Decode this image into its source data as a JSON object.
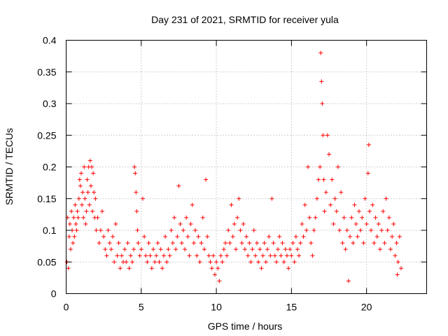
{
  "chart_data": {
    "type": "scatter",
    "title": "Day 231 of 2021, SRMTID for receiver yula",
    "xlabel": "GPS time / hours",
    "ylabel": "SRMTID / TECUs",
    "xlim": [
      0,
      24
    ],
    "ylim": [
      0,
      0.4
    ],
    "x_ticks": [
      "0",
      "5",
      "10",
      "15",
      "20"
    ],
    "y_ticks": [
      "0",
      "0.05",
      "0.1",
      "0.15",
      "0.2",
      "0.25",
      "0.3",
      "0.35",
      "0.4"
    ],
    "grid": true,
    "marker": "+",
    "series": [
      {
        "name": "SRMTID",
        "color": "#ff0000",
        "points": [
          [
            0.05,
            0.05
          ],
          [
            0.1,
            0.12
          ],
          [
            0.15,
            0.04
          ],
          [
            0.2,
            0.09
          ],
          [
            0.25,
            0.11
          ],
          [
            0.3,
            0.07
          ],
          [
            0.35,
            0.13
          ],
          [
            0.4,
            0.1
          ],
          [
            0.45,
            0.08
          ],
          [
            0.5,
            0.12
          ],
          [
            0.55,
            0.09
          ],
          [
            0.6,
            0.14
          ],
          [
            0.65,
            0.11
          ],
          [
            0.7,
            0.1
          ],
          [
            0.75,
            0.13
          ],
          [
            0.8,
            0.12
          ],
          [
            0.85,
            0.15
          ],
          [
            0.9,
            0.18
          ],
          [
            0.95,
            0.17
          ],
          [
            1.0,
            0.19
          ],
          [
            1.05,
            0.14
          ],
          [
            1.1,
            0.16
          ],
          [
            1.15,
            0.12
          ],
          [
            1.2,
            0.2
          ],
          [
            1.25,
            0.15
          ],
          [
            1.3,
            0.11
          ],
          [
            1.35,
            0.13
          ],
          [
            1.4,
            0.18
          ],
          [
            1.45,
            0.16
          ],
          [
            1.5,
            0.2
          ],
          [
            1.55,
            0.14
          ],
          [
            1.6,
            0.21
          ],
          [
            1.65,
            0.17
          ],
          [
            1.7,
            0.2
          ],
          [
            1.75,
            0.13
          ],
          [
            1.8,
            0.19
          ],
          [
            1.85,
            0.16
          ],
          [
            1.9,
            0.12
          ],
          [
            1.95,
            0.15
          ],
          [
            2.0,
            0.1
          ],
          [
            2.1,
            0.12
          ],
          [
            2.2,
            0.08
          ],
          [
            2.3,
            0.1
          ],
          [
            2.4,
            0.13
          ],
          [
            2.5,
            0.09
          ],
          [
            2.6,
            0.07
          ],
          [
            2.7,
            0.06
          ],
          [
            2.8,
            0.1
          ],
          [
            2.9,
            0.08
          ],
          [
            3.0,
            0.07
          ],
          [
            3.1,
            0.09
          ],
          [
            3.2,
            0.05
          ],
          [
            3.3,
            0.11
          ],
          [
            3.4,
            0.06
          ],
          [
            3.5,
            0.08
          ],
          [
            3.6,
            0.04
          ],
          [
            3.7,
            0.06
          ],
          [
            3.8,
            0.05
          ],
          [
            3.9,
            0.07
          ],
          [
            4.0,
            0.05
          ],
          [
            4.1,
            0.08
          ],
          [
            4.2,
            0.04
          ],
          [
            4.3,
            0.06
          ],
          [
            4.4,
            0.05
          ],
          [
            4.5,
            0.07
          ],
          [
            4.55,
            0.2
          ],
          [
            4.6,
            0.19
          ],
          [
            4.65,
            0.16
          ],
          [
            4.7,
            0.13
          ],
          [
            4.75,
            0.1
          ],
          [
            4.8,
            0.08
          ],
          [
            4.9,
            0.06
          ],
          [
            5.0,
            0.07
          ],
          [
            5.1,
            0.15
          ],
          [
            5.2,
            0.09
          ],
          [
            5.3,
            0.06
          ],
          [
            5.4,
            0.05
          ],
          [
            5.5,
            0.08
          ],
          [
            5.6,
            0.06
          ],
          [
            5.7,
            0.04
          ],
          [
            5.8,
            0.07
          ],
          [
            5.9,
            0.05
          ],
          [
            6.0,
            0.06
          ],
          [
            6.1,
            0.08
          ],
          [
            6.2,
            0.05
          ],
          [
            6.3,
            0.07
          ],
          [
            6.4,
            0.04
          ],
          [
            6.5,
            0.06
          ],
          [
            6.6,
            0.09
          ],
          [
            6.7,
            0.05
          ],
          [
            6.8,
            0.07
          ],
          [
            6.9,
            0.06
          ],
          [
            7.0,
            0.1
          ],
          [
            7.1,
            0.08
          ],
          [
            7.2,
            0.12
          ],
          [
            7.3,
            0.07
          ],
          [
            7.4,
            0.09
          ],
          [
            7.5,
            0.17
          ],
          [
            7.6,
            0.11
          ],
          [
            7.7,
            0.08
          ],
          [
            7.8,
            0.1
          ],
          [
            7.9,
            0.07
          ],
          [
            8.0,
            0.12
          ],
          [
            8.1,
            0.09
          ],
          [
            8.2,
            0.06
          ],
          [
            8.3,
            0.11
          ],
          [
            8.4,
            0.14
          ],
          [
            8.5,
            0.08
          ],
          [
            8.6,
            0.1
          ],
          [
            8.7,
            0.06
          ],
          [
            8.8,
            0.09
          ],
          [
            8.9,
            0.05
          ],
          [
            9.0,
            0.08
          ],
          [
            9.1,
            0.12
          ],
          [
            9.2,
            0.07
          ],
          [
            9.3,
            0.18
          ],
          [
            9.4,
            0.09
          ],
          [
            9.5,
            0.06
          ],
          [
            9.6,
            0.05
          ],
          [
            9.7,
            0.04
          ],
          [
            9.8,
            0.06
          ],
          [
            9.9,
            0.03
          ],
          [
            10.0,
            0.05
          ],
          [
            10.1,
            0.04
          ],
          [
            10.2,
            0.02
          ],
          [
            10.3,
            0.06
          ],
          [
            10.4,
            0.05
          ],
          [
            10.5,
            0.07
          ],
          [
            10.6,
            0.08
          ],
          [
            10.7,
            0.06
          ],
          [
            10.8,
            0.1
          ],
          [
            10.9,
            0.08
          ],
          [
            11.0,
            0.14
          ],
          [
            11.1,
            0.09
          ],
          [
            11.2,
            0.11
          ],
          [
            11.3,
            0.07
          ],
          [
            11.4,
            0.12
          ],
          [
            11.5,
            0.15
          ],
          [
            11.6,
            0.1
          ],
          [
            11.7,
            0.08
          ],
          [
            11.8,
            0.11
          ],
          [
            11.9,
            0.07
          ],
          [
            12.0,
            0.09
          ],
          [
            12.1,
            0.06
          ],
          [
            12.2,
            0.08
          ],
          [
            12.3,
            0.05
          ],
          [
            12.4,
            0.07
          ],
          [
            12.5,
            0.1
          ],
          [
            12.6,
            0.06
          ],
          [
            12.7,
            0.08
          ],
          [
            12.8,
            0.05
          ],
          [
            12.9,
            0.07
          ],
          [
            13.0,
            0.04
          ],
          [
            13.1,
            0.06
          ],
          [
            13.2,
            0.08
          ],
          [
            13.3,
            0.05
          ],
          [
            13.4,
            0.07
          ],
          [
            13.5,
            0.09
          ],
          [
            13.6,
            0.06
          ],
          [
            13.7,
            0.15
          ],
          [
            13.8,
            0.08
          ],
          [
            13.9,
            0.06
          ],
          [
            14.0,
            0.05
          ],
          [
            14.1,
            0.07
          ],
          [
            14.2,
            0.09
          ],
          [
            14.3,
            0.06
          ],
          [
            14.4,
            0.08
          ],
          [
            14.5,
            0.05
          ],
          [
            14.6,
            0.07
          ],
          [
            14.7,
            0.06
          ],
          [
            14.8,
            0.04
          ],
          [
            14.9,
            0.07
          ],
          [
            15.0,
            0.06
          ],
          [
            15.1,
            0.08
          ],
          [
            15.2,
            0.05
          ],
          [
            15.3,
            0.09
          ],
          [
            15.4,
            0.07
          ],
          [
            15.5,
            0.06
          ],
          [
            15.6,
            0.08
          ],
          [
            15.7,
            0.11
          ],
          [
            15.8,
            0.09
          ],
          [
            15.9,
            0.14
          ],
          [
            16.0,
            0.1
          ],
          [
            16.1,
            0.2
          ],
          [
            16.2,
            0.12
          ],
          [
            16.3,
            0.08
          ],
          [
            16.4,
            0.06
          ],
          [
            16.5,
            0.1
          ],
          [
            16.6,
            0.12
          ],
          [
            16.7,
            0.15
          ],
          [
            16.8,
            0.18
          ],
          [
            16.9,
            0.2
          ],
          [
            16.95,
            0.38
          ],
          [
            17.0,
            0.335
          ],
          [
            17.05,
            0.3
          ],
          [
            17.1,
            0.25
          ],
          [
            17.15,
            0.18
          ],
          [
            17.2,
            0.13
          ],
          [
            17.3,
            0.16
          ],
          [
            17.4,
            0.25
          ],
          [
            17.5,
            0.22
          ],
          [
            17.6,
            0.14
          ],
          [
            17.7,
            0.18
          ],
          [
            17.8,
            0.11
          ],
          [
            17.9,
            0.15
          ],
          [
            18.0,
            0.13
          ],
          [
            18.1,
            0.2
          ],
          [
            18.2,
            0.1
          ],
          [
            18.3,
            0.16
          ],
          [
            18.4,
            0.08
          ],
          [
            18.5,
            0.12
          ],
          [
            18.6,
            0.07
          ],
          [
            18.7,
            0.1
          ],
          [
            18.8,
            0.02
          ],
          [
            18.9,
            0.09
          ],
          [
            19.0,
            0.12
          ],
          [
            19.1,
            0.08
          ],
          [
            19.2,
            0.14
          ],
          [
            19.3,
            0.11
          ],
          [
            19.4,
            0.09
          ],
          [
            19.5,
            0.13
          ],
          [
            19.6,
            0.1
          ],
          [
            19.7,
            0.12
          ],
          [
            19.8,
            0.08
          ],
          [
            19.9,
            0.15
          ],
          [
            20.0,
            0.11
          ],
          [
            20.1,
            0.19
          ],
          [
            20.15,
            0.235
          ],
          [
            20.2,
            0.13
          ],
          [
            20.3,
            0.1
          ],
          [
            20.4,
            0.14
          ],
          [
            20.5,
            0.08
          ],
          [
            20.6,
            0.12
          ],
          [
            20.7,
            0.09
          ],
          [
            20.8,
            0.11
          ],
          [
            20.9,
            0.07
          ],
          [
            21.0,
            0.1
          ],
          [
            21.1,
            0.13
          ],
          [
            21.2,
            0.08
          ],
          [
            21.3,
            0.15
          ],
          [
            21.4,
            0.1
          ],
          [
            21.5,
            0.12
          ],
          [
            21.6,
            0.07
          ],
          [
            21.7,
            0.09
          ],
          [
            21.8,
            0.11
          ],
          [
            21.9,
            0.06
          ],
          [
            22.0,
            0.08
          ],
          [
            22.05,
            0.03
          ],
          [
            22.1,
            0.05
          ],
          [
            22.2,
            0.09
          ],
          [
            22.3,
            0.04
          ]
        ]
      }
    ]
  }
}
